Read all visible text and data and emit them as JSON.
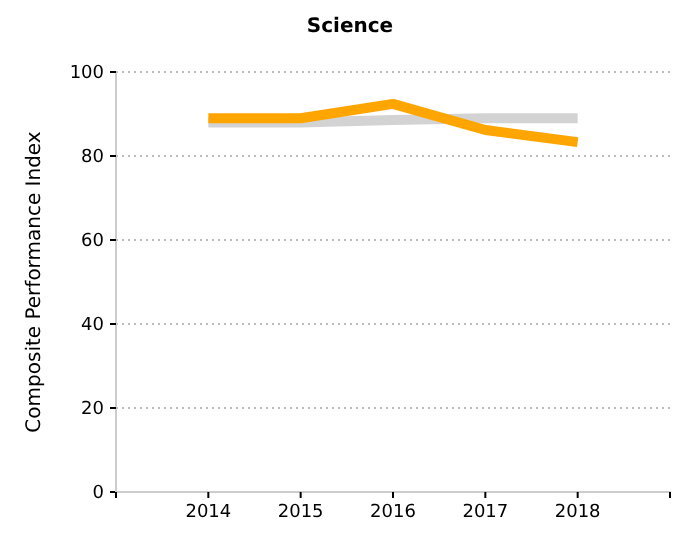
{
  "chart_data": {
    "type": "line",
    "title": "Science",
    "ylabel": "Composite Performance Index",
    "x": [
      2014,
      2015,
      2016,
      2017,
      2018
    ],
    "series": [
      {
        "color": "#d3d3d3",
        "values": [
          88,
          88,
          88.6,
          89,
          89
        ]
      },
      {
        "color": "#ffa500",
        "values": [
          89,
          89,
          92.4,
          86.2,
          83.3
        ]
      }
    ],
    "xlim": [
      2013,
      2019
    ],
    "xticks": [
      {
        "value": 2013,
        "label": null
      },
      2014,
      2015,
      2016,
      2017,
      2018,
      {
        "value": 2019,
        "label": null
      }
    ],
    "ylim": [
      0,
      100
    ],
    "yticks": [
      0,
      20,
      40,
      60,
      80,
      100
    ],
    "grid": "y",
    "marker": "none",
    "line_style": "solid"
  }
}
